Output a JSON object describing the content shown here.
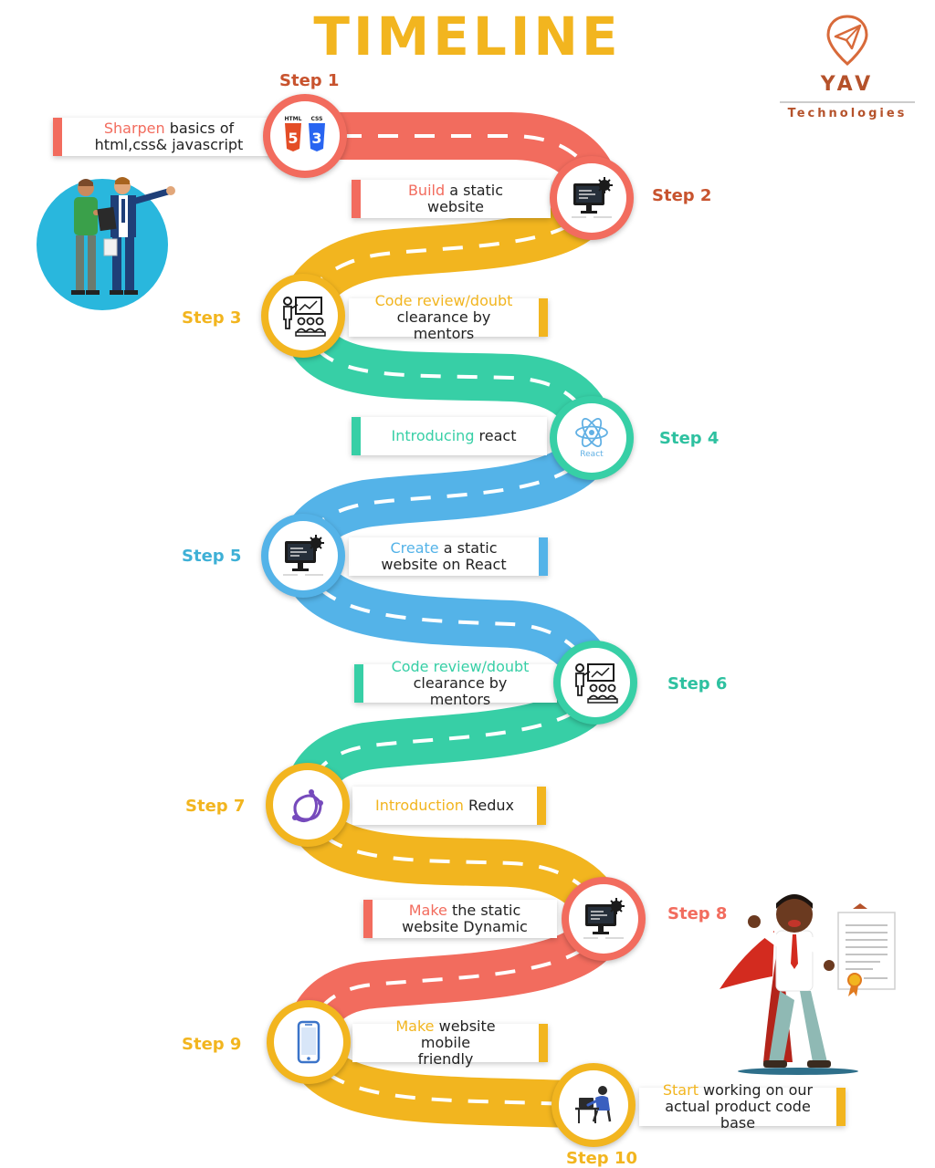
{
  "header": {
    "title": "TIMELINE"
  },
  "logo": {
    "name": "YAV",
    "subtitle": "Technologies",
    "icon": "paper-plane-pin-icon"
  },
  "colors": {
    "coral": "#f26c5e",
    "yellow": "#f2b51f",
    "teal": "#37cfa6",
    "blue": "#54b3e8",
    "step_orange": "#c8532e"
  },
  "steps": [
    {
      "label": "Step 1",
      "highlight": "Sharpen",
      "text": " basics of",
      "text2": "html,css& javascript",
      "icon": "html-css-icon"
    },
    {
      "label": "Step 2",
      "highlight": "Build",
      "text": " a static website",
      "text2": "",
      "icon": "monitor-code-icon"
    },
    {
      "label": "Step 3",
      "highlight": "Code review/doubt",
      "text": "",
      "text2": "clearance by mentors",
      "icon": "mentor-presentation-icon"
    },
    {
      "label": "Step 4",
      "highlight": "Introducing",
      "text": " react",
      "text2": "",
      "icon": "react-icon"
    },
    {
      "label": "Step 5",
      "highlight": "Create",
      "text": " a static",
      "text2": "website on React",
      "icon": "monitor-code-icon"
    },
    {
      "label": "Step 6",
      "highlight": "Code review/doubt",
      "text": "",
      "text2": "clearance by mentors",
      "icon": "mentor-presentation-icon"
    },
    {
      "label": "Step 7",
      "highlight": "Introduction",
      "text": " Redux",
      "text2": "",
      "icon": "redux-icon"
    },
    {
      "label": "Step 8",
      "highlight": "Make",
      "text": " the static",
      "text2": "website Dynamic",
      "icon": "monitor-code-icon"
    },
    {
      "label": "Step 9",
      "highlight": "Make",
      "text": " website mobile",
      "text2": "friendly",
      "icon": "smartphone-icon"
    },
    {
      "label": "Step 10",
      "highlight": "Start",
      "text": " working on our",
      "text2": "actual product code base",
      "icon": "developer-desk-icon"
    }
  ],
  "icon_texts": {
    "html": "HTML",
    "css": "CSS",
    "html_num": "5",
    "css_num": "3",
    "react": "React"
  }
}
